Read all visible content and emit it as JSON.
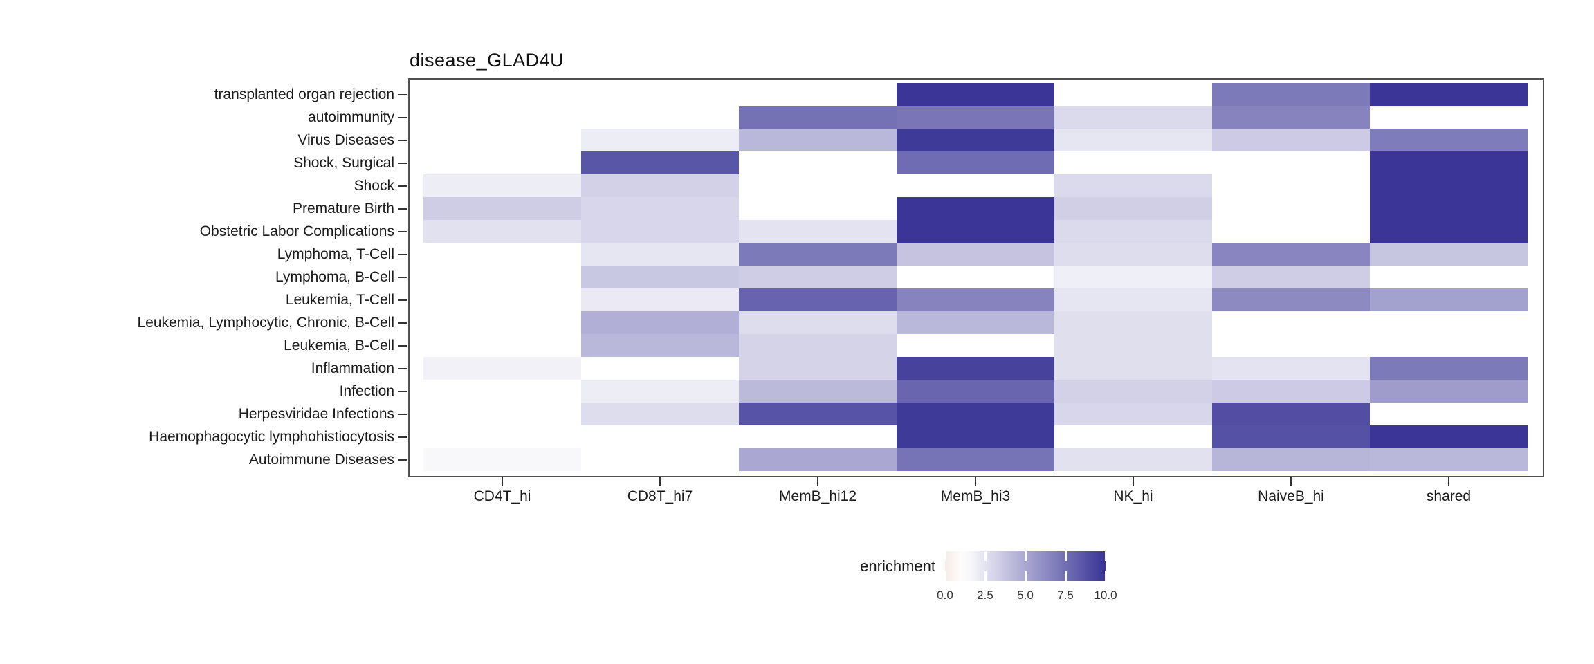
{
  "title": "disease_GLAD4U",
  "chart_data": {
    "type": "heatmap",
    "title": "disease_GLAD4U",
    "columns": [
      "CD4T_hi",
      "CD8T_hi7",
      "MemB_hi12",
      "MemB_hi3",
      "NK_hi",
      "NaiveB_hi",
      "shared"
    ],
    "rows": [
      "transplanted organ rejection",
      "autoimmunity",
      "Virus Diseases",
      "Shock, Surgical",
      "Shock",
      "Premature Birth",
      "Obstetric Labor Complications",
      "Lymphoma, T-Cell",
      "Lymphoma, B-Cell",
      "Leukemia, T-Cell",
      "Leukemia, Lymphocytic, Chronic, B-Cell",
      "Leukemia, B-Cell",
      "Inflammation",
      "Infection",
      "Herpesviridae Infections",
      "Haemophagocytic lymphohistiocytosis",
      "Autoimmune Diseases"
    ],
    "values": [
      [
        null,
        null,
        null,
        10,
        null,
        7.0,
        10
      ],
      [
        null,
        null,
        7.4,
        7.2,
        2.8,
        6.6,
        null
      ],
      [
        null,
        2.0,
        4.3,
        9.8,
        2.3,
        3.5,
        6.9
      ],
      [
        null,
        8.6,
        null,
        7.6,
        null,
        null,
        10
      ],
      [
        2.0,
        3.2,
        null,
        null,
        2.8,
        null,
        10
      ],
      [
        3.4,
        3.0,
        null,
        10,
        3.3,
        null,
        10
      ],
      [
        2.5,
        3.0,
        2.4,
        10,
        2.8,
        null,
        10
      ],
      [
        null,
        2.3,
        7.0,
        3.8,
        2.7,
        6.5,
        3.7
      ],
      [
        null,
        3.6,
        3.4,
        null,
        1.9,
        3.4,
        null
      ],
      [
        null,
        2.1,
        8.0,
        6.6,
        2.3,
        6.3,
        5.3
      ],
      [
        null,
        4.7,
        2.7,
        4.3,
        2.6,
        null,
        null
      ],
      [
        null,
        4.3,
        3.1,
        null,
        2.6,
        null,
        null
      ],
      [
        1.8,
        null,
        3.1,
        9.4,
        2.6,
        2.4,
        7.0
      ],
      [
        null,
        2.0,
        4.2,
        7.9,
        3.2,
        3.5,
        5.5
      ],
      [
        null,
        2.7,
        8.7,
        9.8,
        3.0,
        8.9,
        null
      ],
      [
        null,
        null,
        null,
        9.8,
        null,
        8.8,
        10
      ],
      [
        1.5,
        null,
        5.0,
        7.3,
        2.5,
        4.4,
        4.3
      ]
    ],
    "legend": {
      "title": "enrichment",
      "ticks": [
        "0.0",
        "2.5",
        "5.0",
        "7.5",
        "10.0"
      ],
      "min": 0,
      "max": 10
    },
    "colors": {
      "low": "#F6ECE6",
      "mid": "#FFFFFF",
      "high": "#3A3596",
      "white_point": 1.2
    },
    "layout": {
      "grid": "off",
      "legend_position": "bottom-center"
    }
  }
}
